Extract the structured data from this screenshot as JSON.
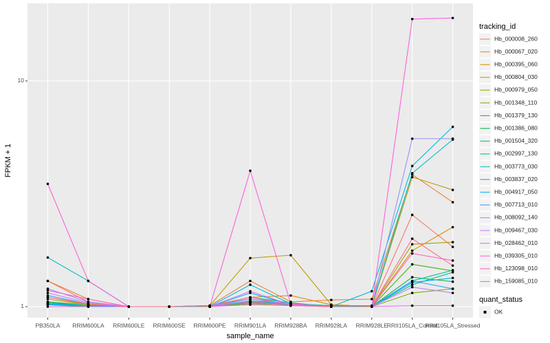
{
  "chart_data": {
    "type": "line",
    "x_label": "sample_name",
    "y_label": "FPKM + 1",
    "categories": [
      "PB350LA",
      "RRIM600LA",
      "RRIM600LE",
      "RRIM600SE",
      "RRIM600PE",
      "RRIM901LA",
      "RRIM928BA",
      "RRIM928LA",
      "RRIM928LE",
      "RRII105LA_Control",
      "RRII105LA_Stressed"
    ],
    "log_y": true,
    "ylim": [
      0.894,
      22.05
    ],
    "yticks": [
      1,
      10
    ],
    "grid": true,
    "points": true,
    "point_color": "#000000",
    "legend_title": "tracking_id",
    "legend_position": "right",
    "shape_legend": {
      "title": "quant_status",
      "labels": [
        "OK"
      ]
    },
    "series": [
      {
        "name": "Hb_000008_260",
        "color": "#F8766D",
        "values": [
          1.3,
          1.05,
          1,
          1,
          1,
          1.05,
          1.02,
          1,
          1,
          2.55,
          1.84
        ]
      },
      {
        "name": "Hb_000067_020",
        "color": "#EA8331",
        "values": [
          1.3,
          1.08,
          1,
          1,
          1.01,
          1.3,
          1.05,
          1.07,
          1.08,
          3.85,
          2.9
        ]
      },
      {
        "name": "Hb_000395_060",
        "color": "#D89000",
        "values": [
          1.1,
          1.02,
          1,
          1,
          1.01,
          1.1,
          1.12,
          1.02,
          1,
          1.77,
          2.25
        ]
      },
      {
        "name": "Hb_000804_030",
        "color": "#C09B00",
        "values": [
          1.05,
          1.02,
          1,
          1,
          1.01,
          1.64,
          1.69,
          1.02,
          1,
          3.75,
          3.29
        ]
      },
      {
        "name": "Hb_000979_050",
        "color": "#A3A500",
        "values": [
          1.08,
          1.02,
          1,
          1,
          1,
          1.05,
          1.03,
          1.01,
          1,
          1.89,
          1.93
        ]
      },
      {
        "name": "Hb_001348_110",
        "color": "#7CAE00",
        "values": [
          1.02,
          1,
          1,
          1,
          1,
          1.03,
          1.02,
          1,
          1,
          1.15,
          1.2
        ]
      },
      {
        "name": "Hb_001379_130",
        "color": "#39B600",
        "values": [
          1.04,
          1.01,
          1,
          1,
          1,
          1.06,
          1.03,
          1,
          1,
          1.54,
          1.44
        ]
      },
      {
        "name": "Hb_001386_080",
        "color": "#00BB4E",
        "values": [
          1.03,
          1.01,
          1,
          1,
          1,
          1.1,
          1.04,
          1,
          1,
          1.35,
          1.29
        ]
      },
      {
        "name": "Hb_001504_320",
        "color": "#00BF7D",
        "values": [
          1.02,
          1,
          1,
          1,
          1,
          1.04,
          1.02,
          1,
          1,
          1.25,
          1.42
        ]
      },
      {
        "name": "Hb_002997_130",
        "color": "#00C1A3",
        "values": [
          1.05,
          1.01,
          1,
          1,
          1,
          1.08,
          1.02,
          1.01,
          1,
          1.3,
          1.45
        ]
      },
      {
        "name": "Hb_003773_030",
        "color": "#00BFC4",
        "values": [
          1.65,
          1.3,
          1,
          1,
          1.01,
          1.08,
          1.03,
          1.01,
          1.01,
          3.9,
          5.5
        ]
      },
      {
        "name": "Hb_003837_020",
        "color": "#00BAE0",
        "values": [
          1.02,
          1.01,
          1,
          1,
          1,
          1.25,
          1.03,
          1,
          1.17,
          4.2,
          6.26
        ]
      },
      {
        "name": "Hb_004917_050",
        "color": "#00B0F6",
        "values": [
          1.03,
          1.01,
          1,
          1,
          1,
          1.15,
          1.02,
          1,
          1,
          1.28,
          1.34
        ]
      },
      {
        "name": "Hb_007713_010",
        "color": "#35A2FF",
        "values": [
          1.12,
          1.03,
          1,
          1,
          1,
          1.06,
          1.02,
          1,
          1,
          1.3,
          1.2
        ]
      },
      {
        "name": "Hb_008092_140",
        "color": "#9590FF",
        "values": [
          1.2,
          1.05,
          1,
          1,
          1,
          1.08,
          1.02,
          1,
          1,
          5.55,
          5.55
        ]
      },
      {
        "name": "Hb_009467_030",
        "color": "#C77CFF",
        "values": [
          1.15,
          1.04,
          1,
          1,
          1,
          1.17,
          1.02,
          1,
          1,
          1.22,
          1.15
        ]
      },
      {
        "name": "Hb_028462_010",
        "color": "#E76BF3",
        "values": [
          1.0,
          1.0,
          1,
          1,
          1,
          1.02,
          1.01,
          1,
          1,
          1.01,
          1.01
        ]
      },
      {
        "name": "Hb_039305_010",
        "color": "#FA62DB",
        "values": [
          3.5,
          1.3,
          1,
          1,
          1,
          4.0,
          1.03,
          1,
          1,
          18.8,
          19.0
        ]
      },
      {
        "name": "Hb_123098_010",
        "color": "#FF62BC",
        "values": [
          1.18,
          1.08,
          1,
          1,
          1,
          1.1,
          1.02,
          1,
          1,
          1.72,
          1.6
        ]
      },
      {
        "name": "Hb_159085_010",
        "color": "#FF6C91",
        "values": [
          1.1,
          1.03,
          1,
          1,
          1,
          1.05,
          1.01,
          1,
          1,
          2.0,
          1.52
        ]
      }
    ]
  }
}
